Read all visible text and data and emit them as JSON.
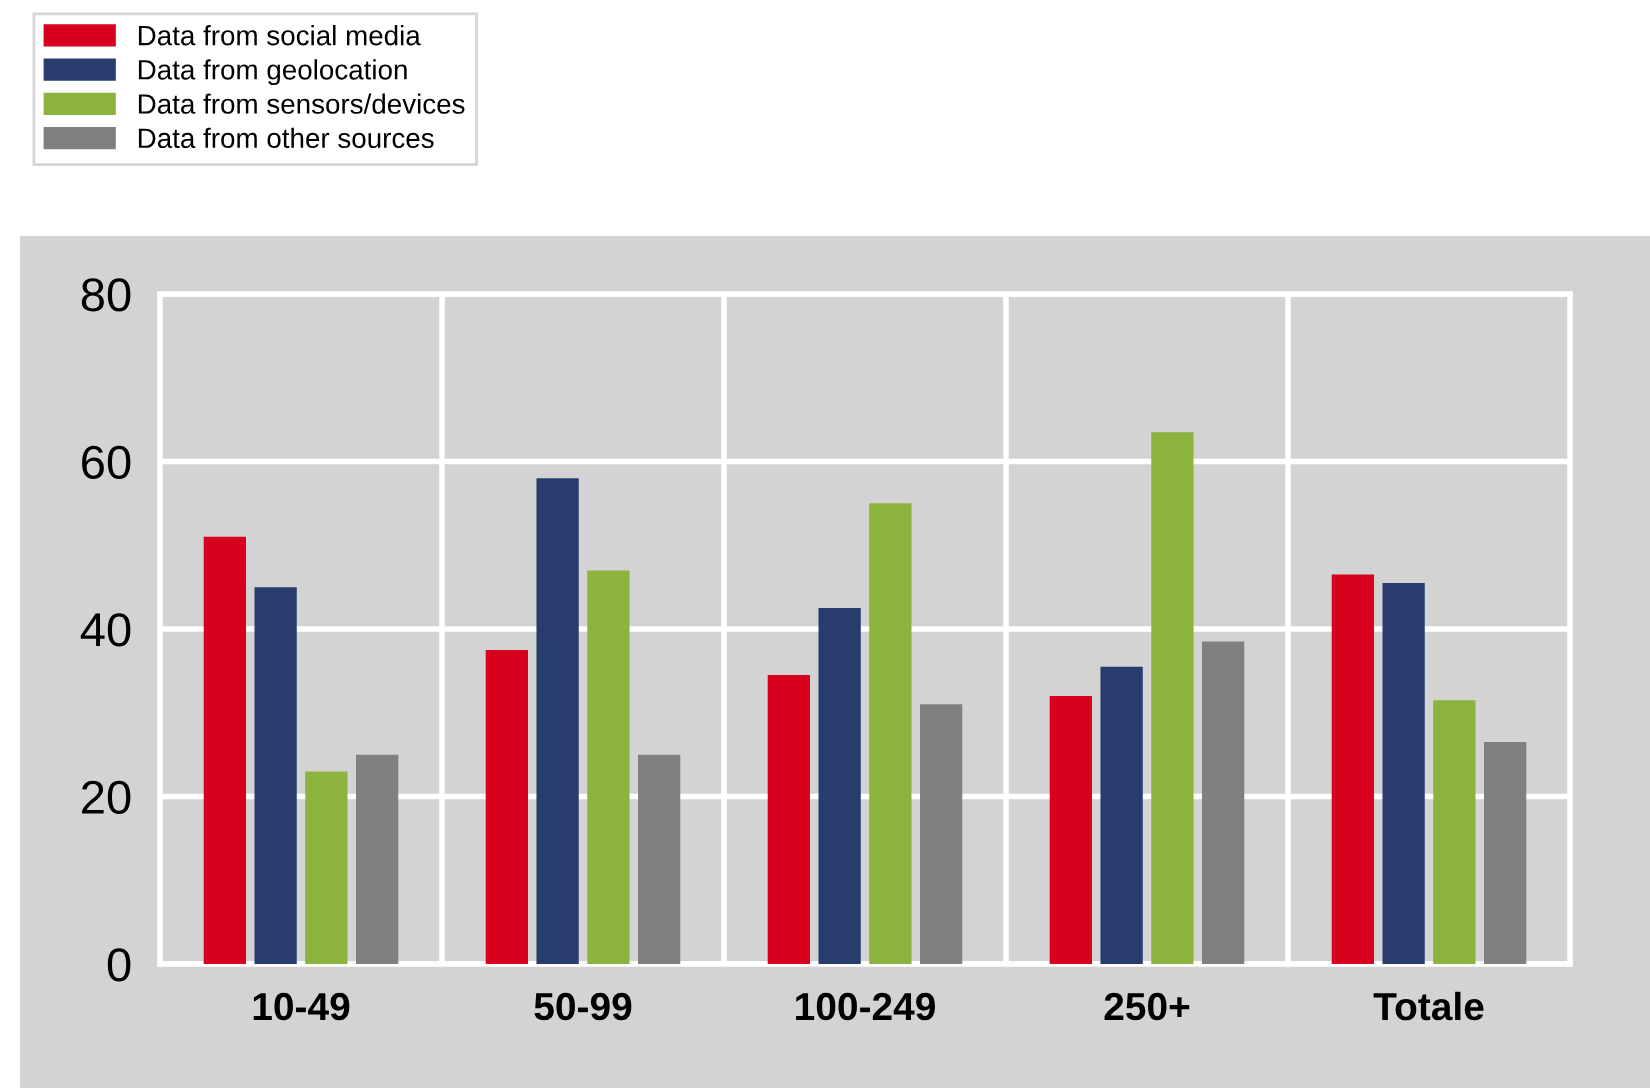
{
  "chart_data": {
    "type": "bar",
    "categories": [
      "10-49",
      "50-99",
      "100-249",
      "250+",
      "Totale"
    ],
    "series": [
      {
        "name": "Data from social media",
        "color": "#d7001e",
        "values": [
          51,
          37.5,
          34.5,
          32,
          46.5
        ]
      },
      {
        "name": "Data from geolocation",
        "color": "#283d6e",
        "values": [
          45,
          58,
          42.5,
          35.5,
          45.5
        ]
      },
      {
        "name": "Data from sensors/devices",
        "color": "#8db33f",
        "values": [
          23,
          47,
          55,
          63.5,
          31.5
        ]
      },
      {
        "name": "Data from other sources",
        "color": "#808080",
        "values": [
          25,
          25,
          31,
          38.5,
          26.5
        ]
      }
    ],
    "ylim": [
      0,
      80
    ],
    "yticks": [
      0,
      20,
      40,
      60,
      80
    ],
    "grid": true,
    "legend": "top left"
  }
}
